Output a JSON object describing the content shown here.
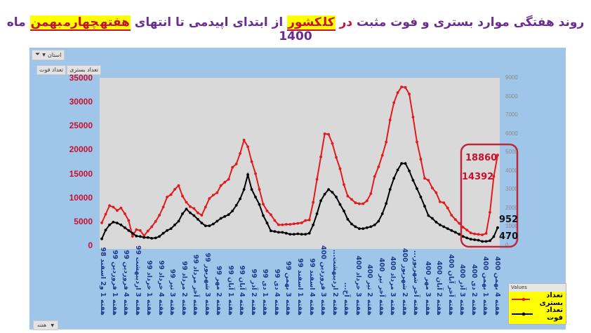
{
  "title": {
    "part1": "روند هفتگی موارد بستری و فوت مثبت ",
    "dar": "در",
    "kol": "کل",
    "keshvar": "کشور",
    "part2": " از ابتدای اپیدمی تا انتهای ",
    "hafte": "هفته",
    "chaharom": "چهارم",
    "bahman": "بهمن",
    "part3": " ماه 1400"
  },
  "controls": {
    "filter_label": "استان",
    "field_hospitalized": "تعداد بستری",
    "field_deaths": "تعداد فوت",
    "bottom_label": "هفته"
  },
  "legend": {
    "title": "Values",
    "items": [
      {
        "label": "تعداد بستری",
        "color": "#e31a1c"
      },
      {
        "label": "تعداد فوت",
        "color": "#000000"
      }
    ]
  },
  "annotations": {
    "hosp_last": "18860",
    "hosp_prev": "14392",
    "death_last": "952",
    "death_prev": "470",
    "box_color": "#c0273d"
  },
  "colors": {
    "hospitalized": "#e31a1c",
    "deaths": "#000000",
    "panel": "#9fc5e8",
    "plot": "#d9d9d9",
    "title": "#6b2c8f"
  },
  "chart_data": {
    "type": "line",
    "title": "روند هفتگی موارد بستری و فوت مثبت در کل کشور از ابتدای اپیدمی تا انتهای هفته چهارم بهمن ماه 1400",
    "xlabel": "هفته",
    "ylabel_left": "تعداد بستری",
    "ylabel_right": "تعداد فوت",
    "ylim_left": [
      0,
      35000
    ],
    "ylim_right": [
      0,
      9000
    ],
    "left_ticks": [
      "35000",
      "30000",
      "25000",
      "20000",
      "15000",
      "10000",
      "5000",
      "0"
    ],
    "right_ticks": [
      "9000",
      "8000",
      "7000",
      "6000",
      "5000",
      "4000",
      "3000",
      "2000",
      "1000",
      "0"
    ],
    "grid": false,
    "legend_position": "bottom-right",
    "x_tick_labels": [
      "هفته 1 و2 اسفند 98",
      "هفته 1 فروردین 99",
      "هفته 4 فروردین 99",
      "هفته 3 اردیبهشت 99",
      "هفته 1 خرداد 99",
      "هفته 4 خرداد 99",
      "هفته 3 تیر 99",
      "هفته 2 مرداد 99",
      "هفته آخر مرداد 99",
      "هفته 3 شهریور 99",
      "هفته 2 مهر 99",
      "هفته 1 آبان 99",
      "هفته 4 آبان 99",
      "هفته 2 آذر 99",
      "هفته 1 دی 99",
      "هفته 4 دی 99",
      "هفته 3 بهمن 99",
      "هفته 1 اسفند 99",
      "هفته 4 اسفند 99",
      "هفته 3 فروردین 400",
      "هفته 2 اردیبهشت...",
      "هفته آخ...",
      "هفته 3 خرداد 400",
      "هفته 2 تیر 400",
      "هفته آخر تیر 400",
      "هفته 3 مرداد 400",
      "هفته 2 شهریور 400",
      "هفته آخر شهریور...",
      "هفته 3 مهر 400",
      "هفته 2 آبان 400",
      "هفته آخر آبان 400",
      "هفته 3 آذر 400",
      "هفته 2 دی 400",
      "هفته 1 بهمن 400",
      "هفته 4 بهمن 400"
    ],
    "series": [
      {
        "name": "تعداد بستری",
        "axis": "left",
        "color": "#e31a1c",
        "values": [
          4700,
          6500,
          8300,
          8000,
          7300,
          7800,
          6600,
          5200,
          1900,
          3300,
          3100,
          2000,
          3000,
          3900,
          5000,
          6300,
          8000,
          10100,
          10600,
          11700,
          12500,
          10300,
          9000,
          8100,
          7700,
          6800,
          6300,
          8000,
          9800,
          10500,
          11000,
          12500,
          13200,
          13800,
          16300,
          17000,
          19200,
          22000,
          20600,
          17500,
          15000,
          11700,
          8600,
          7200,
          6400,
          5200,
          4300,
          4300,
          4400,
          4400,
          4500,
          4600,
          4700,
          5200,
          5300,
          9000,
          13800,
          18500,
          23300,
          23200,
          21300,
          18400,
          16000,
          12700,
          10300,
          9600,
          8900,
          8700,
          8700,
          9300,
          10800,
          14400,
          16400,
          18800,
          21600,
          26200,
          29800,
          31900,
          33100,
          33000,
          31600,
          26800,
          21600,
          18000,
          14000,
          13600,
          12000,
          11000,
          9100,
          8900,
          7800,
          6300,
          5400,
          4600,
          3800,
          3200,
          2600,
          2400,
          2300,
          2200,
          2500,
          6900,
          14392,
          18860
        ]
      },
      {
        "name": "تعداد فوت",
        "axis": "right",
        "color": "#000000",
        "values": [
          350,
          820,
          1100,
          1250,
          1200,
          1100,
          950,
          800,
          650,
          500,
          480,
          420,
          420,
          380,
          400,
          480,
          650,
          800,
          900,
          1100,
          1300,
          1700,
          1950,
          1750,
          1600,
          1400,
          1200,
          1050,
          1050,
          1150,
          1300,
          1450,
          1550,
          1650,
          1850,
          2150,
          2500,
          3000,
          3800,
          3000,
          2600,
          2200,
          1600,
          1200,
          780,
          750,
          700,
          700,
          650,
          600,
          600,
          620,
          600,
          600,
          650,
          1100,
          1700,
          2400,
          2750,
          3000,
          2850,
          2600,
          2200,
          1850,
          1400,
          1150,
          1000,
          900,
          900,
          950,
          1000,
          1100,
          1300,
          1700,
          2250,
          3000,
          3600,
          4050,
          4400,
          4400,
          4000,
          3500,
          3050,
          2600,
          2100,
          1600,
          1450,
          1250,
          1100,
          1000,
          900,
          800,
          700,
          600,
          480,
          400,
          330,
          300,
          280,
          210,
          210,
          250,
          470,
          952
        ]
      }
    ],
    "annotations": [
      {
        "series": "تعداد بستری",
        "label": "18860"
      },
      {
        "series": "تعداد بستری",
        "label": "14392"
      },
      {
        "series": "تعداد فوت",
        "label": "952"
      },
      {
        "series": "تعداد فوت",
        "label": "470"
      }
    ]
  }
}
